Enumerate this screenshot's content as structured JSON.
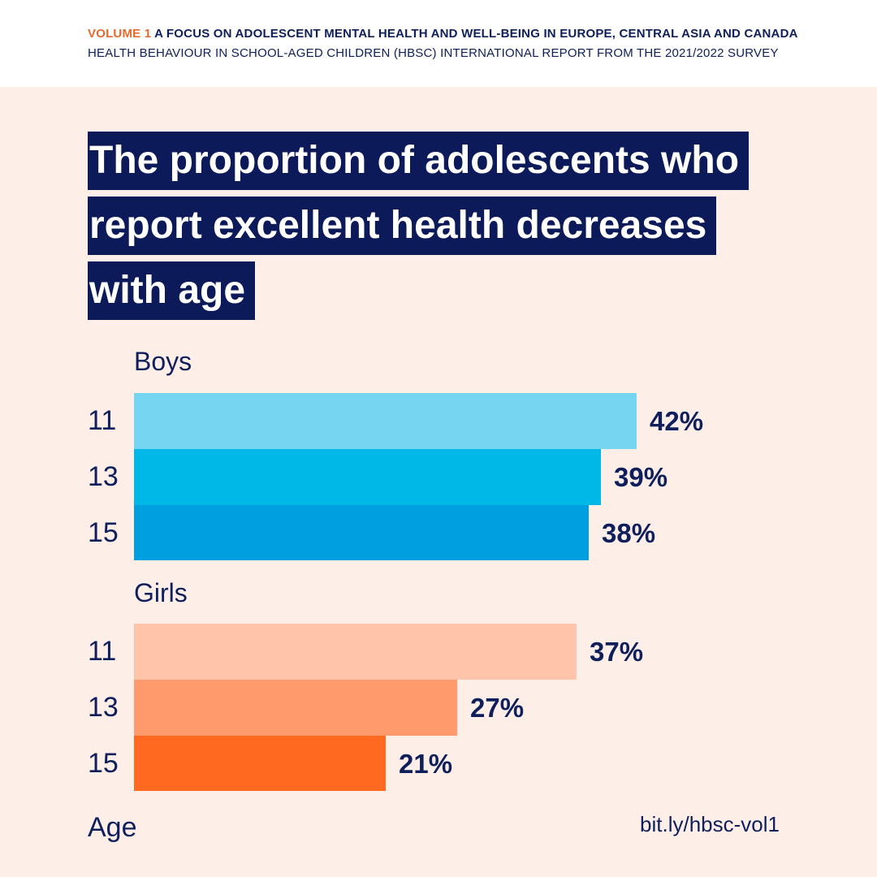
{
  "header": {
    "volume": "VOLUME 1",
    "line1_rest": "A FOCUS ON ADOLESCENT MENTAL HEALTH AND WELL-BEING IN EUROPE, CENTRAL ASIA AND CANADA",
    "line2": "HEALTH BEHAVIOUR IN SCHOOL-AGED CHILDREN (HBSC) INTERNATIONAL REPORT FROM THE 2021/2022 SURVEY"
  },
  "title_lines": [
    "The proportion of adolescents who",
    "report excellent health decreases",
    "with age"
  ],
  "chart_data": {
    "type": "bar",
    "orientation": "horizontal",
    "title": "The proportion of adolescents who report excellent health decreases with age",
    "ylabel": "Age",
    "unit": "%",
    "xlim": [
      0,
      100
    ],
    "groups": [
      {
        "name": "Boys",
        "categories": [
          "11",
          "13",
          "15"
        ],
        "values": [
          42,
          39,
          38
        ],
        "labels": [
          "42%",
          "39%",
          "38%"
        ],
        "colors": [
          "#76d6f2",
          "#00b8e8",
          "#009fdf"
        ]
      },
      {
        "name": "Girls",
        "categories": [
          "11",
          "13",
          "15"
        ],
        "values": [
          37,
          27,
          21
        ],
        "labels": [
          "37%",
          "27%",
          "21%"
        ],
        "colors": [
          "#ffc4aa",
          "#ff9a6c",
          "#ff6a20"
        ]
      }
    ]
  },
  "footer": {
    "axis_title": "Age",
    "link": "bit.ly/hbsc-vol1"
  }
}
